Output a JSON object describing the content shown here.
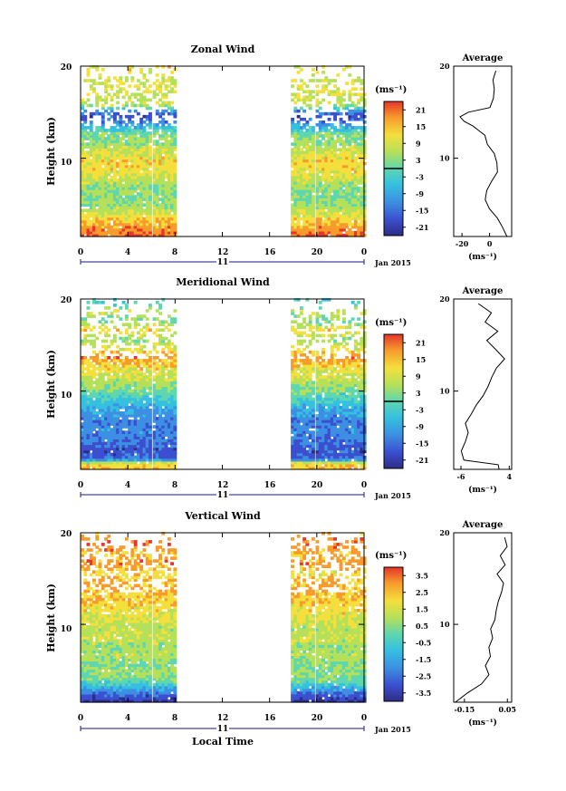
{
  "chart_data": [
    {
      "type": "heatmap",
      "id": "zonal",
      "title": "Zonal Wind",
      "ylabel": "Height (km)",
      "yticks": [
        "20",
        "10"
      ],
      "xticks": [
        "0",
        "4",
        "8",
        "12",
        "16",
        "20",
        "0"
      ],
      "day_label": "11",
      "month_label": "Jan 2015",
      "xlim": [
        0,
        24
      ],
      "ylim": [
        1.5,
        20
      ],
      "data_windows_hours": [
        [
          0,
          5.9
        ],
        [
          6.1,
          8
        ],
        [
          17.8,
          19.6
        ],
        [
          19.9,
          24
        ]
      ],
      "colorbar": {
        "unit": "(ms⁻¹)",
        "ticks": [
          "21",
          "15",
          "9",
          "3",
          "-3",
          "-9",
          "-15",
          "-21"
        ],
        "range": [
          -24,
          24
        ],
        "zero_marker": true
      },
      "profile": {
        "title": "Average",
        "xlabel": "(ms⁻¹)",
        "xticks": [
          "-20",
          "0"
        ],
        "xlim": [
          -26,
          16
        ],
        "yticks": [
          "20",
          "10"
        ],
        "heights": [
          1.5,
          2.5,
          3.5,
          4.5,
          5.5,
          6.5,
          7.5,
          8.5,
          9.5,
          10.5,
          11.5,
          12.5,
          13.0,
          13.5,
          14.0,
          14.5,
          15.0,
          15.5,
          16.5,
          17.5,
          18.5,
          19.5
        ],
        "values": [
          13,
          10,
          5,
          0,
          -3,
          -2,
          1,
          5,
          6,
          3,
          -1,
          -3,
          -8,
          -12,
          -18,
          -22,
          -15,
          0,
          2,
          4,
          2,
          5
        ]
      }
    },
    {
      "type": "heatmap",
      "id": "meridional",
      "title": "Meridional Wind",
      "ylabel": "Height (km)",
      "yticks": [
        "20",
        "10"
      ],
      "xticks": [
        "0",
        "4",
        "8",
        "12",
        "16",
        "20",
        "0"
      ],
      "day_label": "11",
      "month_label": "Jan 2015",
      "xlim": [
        0,
        24
      ],
      "ylim": [
        1.5,
        20
      ],
      "data_windows_hours": [
        [
          0,
          5.9
        ],
        [
          6.1,
          8
        ],
        [
          17.8,
          19.6
        ],
        [
          19.9,
          24
        ]
      ],
      "colorbar": {
        "unit": "(ms⁻¹)",
        "ticks": [
          "21",
          "15",
          "9",
          "3",
          "-3",
          "-9",
          "-15",
          "-21"
        ],
        "range": [
          -24,
          24
        ],
        "zero_marker": true
      },
      "profile": {
        "title": "Average",
        "xlabel": "(ms⁻¹)",
        "xticks": [
          "-6",
          "4"
        ],
        "xlim": [
          -7.5,
          4.5
        ],
        "yticks": [
          "20",
          "10"
        ],
        "heights": [
          1.5,
          2.0,
          2.5,
          3.5,
          4.5,
          5.5,
          6.5,
          7.5,
          8.5,
          9.5,
          10.5,
          11.5,
          12.5,
          13.5,
          14.5,
          15.5,
          16.5,
          17.5,
          18.5,
          19.5
        ],
        "values": [
          2.0,
          1.5,
          -5.5,
          -6.0,
          -5.0,
          -4.5,
          -5.0,
          -4.0,
          -3.0,
          -1.5,
          -0.5,
          0.5,
          1.5,
          3.0,
          1.0,
          -0.5,
          1.5,
          -1.0,
          0.5,
          -2.5
        ]
      }
    },
    {
      "type": "heatmap",
      "id": "vertical",
      "title": "Vertical Wind",
      "ylabel": "Height (km)",
      "yticks": [
        "20",
        "10"
      ],
      "xticks": [
        "0",
        "4",
        "8",
        "12",
        "16",
        "20",
        "0"
      ],
      "day_label": "11",
      "month_label": "Jan 2015",
      "xlabel": "Local Time",
      "xlim": [
        0,
        24
      ],
      "ylim": [
        1.5,
        20
      ],
      "data_windows_hours": [
        [
          0,
          5.9
        ],
        [
          6.1,
          8
        ],
        [
          17.8,
          19.6
        ],
        [
          19.9,
          24
        ]
      ],
      "colorbar": {
        "unit": "(ms⁻¹)",
        "ticks": [
          "3.5",
          "2.5",
          "1.5",
          "0.5",
          "-0.5",
          "-1.5",
          "-2.5",
          "-3.5"
        ],
        "range": [
          -4,
          4
        ],
        "zero_marker": false
      },
      "profile": {
        "title": "Average",
        "xlabel": "(ms⁻¹)",
        "xticks": [
          "-0.15",
          "0.05"
        ],
        "xlim": [
          -0.2,
          0.07
        ],
        "yticks": [
          "20",
          "10"
        ],
        "heights": [
          1.5,
          2.5,
          3.5,
          4.5,
          5.5,
          6.5,
          7.5,
          8.5,
          9.5,
          10.5,
          11.5,
          12.5,
          13.5,
          14.5,
          15.5,
          16.5,
          17.5,
          18.5,
          19.5
        ],
        "values": [
          -0.19,
          -0.14,
          -0.07,
          -0.04,
          -0.05,
          -0.03,
          -0.04,
          -0.02,
          -0.03,
          -0.01,
          0.0,
          0.01,
          0.02,
          0.03,
          0.0,
          0.04,
          0.02,
          0.05,
          0.04
        ]
      }
    }
  ]
}
